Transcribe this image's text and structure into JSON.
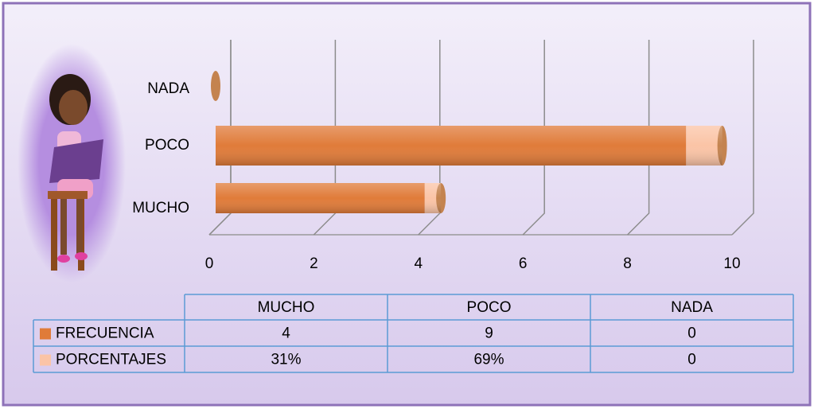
{
  "chart_data": {
    "type": "bar",
    "orientation": "horizontal",
    "stacked": true,
    "categories": [
      "MUCHO",
      "POCO",
      "NADA"
    ],
    "series": [
      {
        "name": "FRECUENCIA",
        "color": "#e07b39",
        "values": [
          4,
          9,
          0
        ]
      },
      {
        "name": "PORCENTAJES",
        "color": "#fbc4a6",
        "values": [
          0.31,
          0.69,
          0
        ],
        "value_labels": [
          "31%",
          "69%",
          "0"
        ]
      }
    ],
    "xlim": [
      0,
      10
    ],
    "xticks": [
      0,
      2,
      4,
      6,
      8,
      10
    ],
    "grid": true,
    "data_table": true
  }
}
